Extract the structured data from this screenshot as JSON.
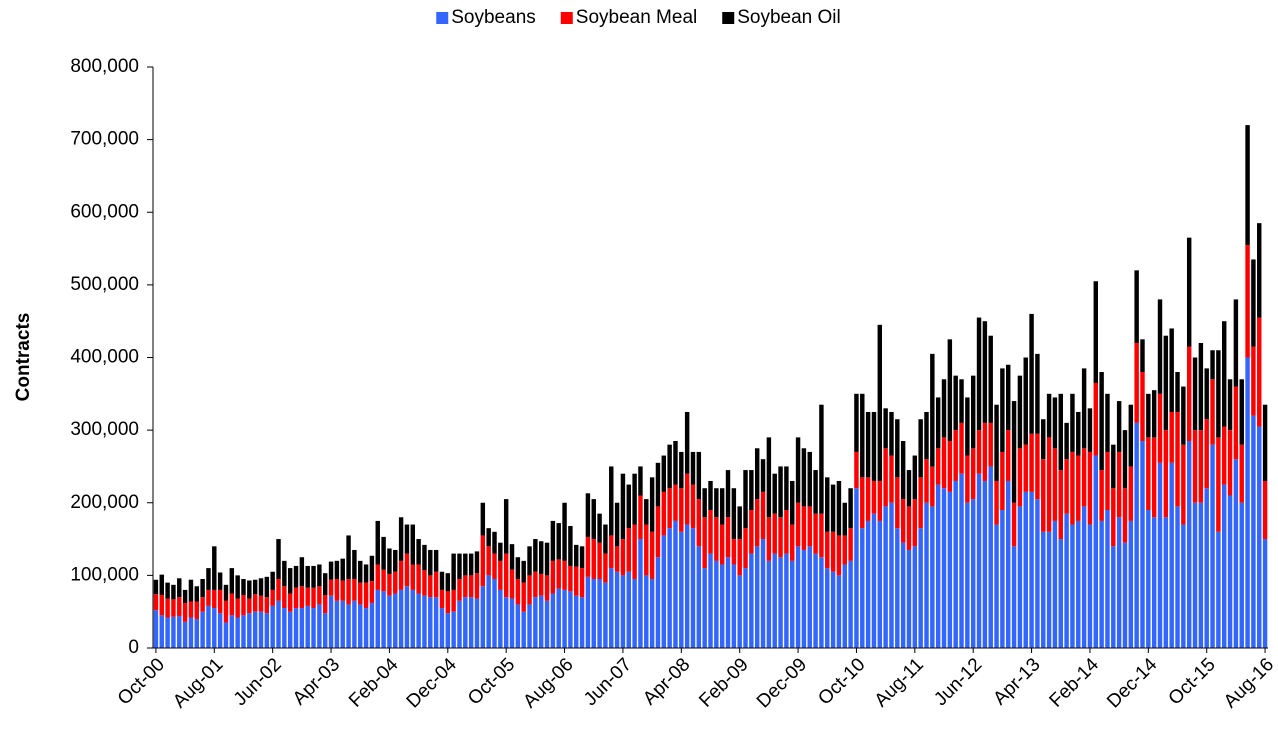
{
  "chart_data": {
    "type": "stacked_bar",
    "y_label": "Contracts",
    "categories": [
      "Oct-00",
      null,
      null,
      null,
      null,
      null,
      null,
      null,
      null,
      null,
      "Aug-01",
      null,
      null,
      null,
      null,
      null,
      null,
      null,
      null,
      null,
      "Jun-02",
      null,
      null,
      null,
      null,
      null,
      null,
      null,
      null,
      null,
      "Apr-03",
      null,
      null,
      null,
      null,
      null,
      null,
      null,
      null,
      null,
      "Feb-04",
      null,
      null,
      null,
      null,
      null,
      null,
      null,
      null,
      null,
      "Dec-04",
      null,
      null,
      null,
      null,
      null,
      null,
      null,
      null,
      null,
      "Oct-05",
      null,
      null,
      null,
      null,
      null,
      null,
      null,
      null,
      null,
      "Aug-06",
      null,
      null,
      null,
      null,
      null,
      null,
      null,
      null,
      null,
      "Jun-07",
      null,
      null,
      null,
      null,
      null,
      null,
      null,
      null,
      null,
      "Apr-08",
      null,
      null,
      null,
      null,
      null,
      null,
      null,
      null,
      null,
      "Feb-09",
      null,
      null,
      null,
      null,
      null,
      null,
      null,
      null,
      null,
      "Dec-09",
      null,
      null,
      null,
      null,
      null,
      null,
      null,
      null,
      null,
      "Oct-10",
      null,
      null,
      null,
      null,
      null,
      null,
      null,
      null,
      null,
      "Aug-11",
      null,
      null,
      null,
      null,
      null,
      null,
      null,
      null,
      null,
      "Jun-12",
      null,
      null,
      null,
      null,
      null,
      null,
      null,
      null,
      null,
      "Apr-13",
      null,
      null,
      null,
      null,
      null,
      null,
      null,
      null,
      null,
      "Feb-14",
      null,
      null,
      null,
      null,
      null,
      null,
      null,
      null,
      null,
      "Dec-14",
      null,
      null,
      null,
      null,
      null,
      null,
      null,
      null,
      null,
      "Oct-15",
      null,
      null,
      null,
      null,
      null,
      null,
      null,
      null,
      null,
      "Aug-16"
    ],
    "series": [
      {
        "name": "Soybeans",
        "color": "#3366ff",
        "values": [
          52000,
          45000,
          42000,
          43000,
          44000,
          36000,
          42000,
          40000,
          50000,
          58000,
          55000,
          48000,
          35000,
          45000,
          42000,
          45000,
          48000,
          50000,
          50000,
          48000,
          58000,
          65000,
          55000,
          50000,
          55000,
          55000,
          58000,
          55000,
          60000,
          48000,
          72000,
          65000,
          65000,
          60000,
          65000,
          60000,
          55000,
          62000,
          80000,
          78000,
          72000,
          75000,
          80000,
          85000,
          80000,
          75000,
          72000,
          70000,
          70000,
          55000,
          48000,
          50000,
          65000,
          70000,
          70000,
          68000,
          85000,
          100000,
          95000,
          80000,
          70000,
          68000,
          60000,
          50000,
          60000,
          70000,
          72000,
          65000,
          75000,
          82000,
          80000,
          78000,
          72000,
          70000,
          98000,
          95000,
          95000,
          90000,
          110000,
          105000,
          100000,
          105000,
          95000,
          150000,
          100000,
          95000,
          125000,
          155000,
          165000,
          175000,
          160000,
          170000,
          165000,
          140000,
          110000,
          130000,
          120000,
          115000,
          125000,
          115000,
          100000,
          110000,
          130000,
          140000,
          150000,
          120000,
          130000,
          125000,
          130000,
          120000,
          140000,
          135000,
          140000,
          130000,
          125000,
          110000,
          105000,
          100000,
          115000,
          120000,
          220000,
          165000,
          175000,
          185000,
          175000,
          195000,
          200000,
          165000,
          145000,
          135000,
          140000,
          165000,
          200000,
          195000,
          225000,
          220000,
          215000,
          230000,
          240000,
          200000,
          205000,
          240000,
          230000,
          250000,
          170000,
          190000,
          230000,
          140000,
          195000,
          215000,
          215000,
          205000,
          160000,
          160000,
          175000,
          150000,
          185000,
          170000,
          175000,
          195000,
          170000,
          265000,
          175000,
          190000,
          140000,
          180000,
          145000,
          175000,
          310000,
          285000,
          190000,
          180000,
          255000,
          180000,
          255000,
          195000,
          170000,
          285000,
          200000,
          200000,
          220000,
          280000,
          160000,
          225000,
          210000,
          260000,
          200000,
          400000,
          320000,
          305000,
          150000
        ]
      },
      {
        "name": "Soybean Meal",
        "color": "#ff0000",
        "values": [
          22000,
          28000,
          26000,
          24000,
          26000,
          26000,
          22000,
          24000,
          20000,
          22000,
          25000,
          32000,
          30000,
          30000,
          26000,
          28000,
          20000,
          24000,
          22000,
          22000,
          22000,
          30000,
          30000,
          25000,
          28000,
          30000,
          25000,
          28000,
          25000,
          25000,
          22000,
          30000,
          28000,
          35000,
          30000,
          30000,
          35000,
          30000,
          35000,
          30000,
          30000,
          30000,
          40000,
          45000,
          35000,
          40000,
          35000,
          30000,
          35000,
          25000,
          30000,
          30000,
          30000,
          30000,
          30000,
          35000,
          70000,
          40000,
          35000,
          40000,
          60000,
          40000,
          35000,
          40000,
          40000,
          35000,
          30000,
          35000,
          45000,
          40000,
          40000,
          35000,
          40000,
          40000,
          55000,
          55000,
          50000,
          40000,
          45000,
          35000,
          50000,
          60000,
          75000,
          60000,
          70000,
          65000,
          70000,
          60000,
          55000,
          50000,
          60000,
          70000,
          60000,
          65000,
          70000,
          60000,
          60000,
          55000,
          55000,
          35000,
          50000,
          55000,
          60000,
          65000,
          65000,
          60000,
          55000,
          55000,
          60000,
          50000,
          60000,
          60000,
          55000,
          55000,
          60000,
          50000,
          55000,
          55000,
          40000,
          45000,
          50000,
          70000,
          60000,
          45000,
          55000,
          80000,
          65000,
          70000,
          60000,
          60000,
          65000,
          70000,
          60000,
          55000,
          50000,
          70000,
          70000,
          70000,
          70000,
          65000,
          70000,
          60000,
          80000,
          60000,
          60000,
          80000,
          70000,
          60000,
          80000,
          65000,
          80000,
          90000,
          100000,
          130000,
          100000,
          95000,
          75000,
          100000,
          90000,
          80000,
          100000,
          100000,
          70000,
          80000,
          80000,
          90000,
          75000,
          75000,
          110000,
          95000,
          100000,
          110000,
          95000,
          120000,
          70000,
          130000,
          110000,
          130000,
          100000,
          100000,
          95000,
          90000,
          130000,
          80000,
          90000,
          100000,
          80000,
          155000,
          95000,
          150000,
          80000
        ]
      },
      {
        "name": "Soybean Oil",
        "color": "#000000",
        "values": [
          20000,
          28000,
          22000,
          20000,
          26000,
          18000,
          30000,
          21000,
          25000,
          30000,
          60000,
          24000,
          22000,
          35000,
          32000,
          22000,
          25000,
          20000,
          24000,
          28000,
          25000,
          55000,
          35000,
          35000,
          30000,
          40000,
          30000,
          30000,
          30000,
          30000,
          25000,
          25000,
          30000,
          60000,
          40000,
          30000,
          25000,
          35000,
          60000,
          45000,
          35000,
          30000,
          60000,
          40000,
          55000,
          35000,
          35000,
          35000,
          30000,
          25000,
          25000,
          50000,
          35000,
          30000,
          30000,
          30000,
          45000,
          25000,
          30000,
          25000,
          75000,
          35000,
          30000,
          30000,
          40000,
          45000,
          45000,
          45000,
          55000,
          50000,
          80000,
          55000,
          30000,
          30000,
          60000,
          55000,
          40000,
          40000,
          95000,
          60000,
          90000,
          60000,
          70000,
          40000,
          35000,
          75000,
          60000,
          50000,
          60000,
          60000,
          50000,
          85000,
          45000,
          65000,
          40000,
          40000,
          40000,
          50000,
          65000,
          70000,
          45000,
          80000,
          55000,
          70000,
          45000,
          110000,
          55000,
          70000,
          60000,
          60000,
          90000,
          80000,
          75000,
          60000,
          150000,
          75000,
          65000,
          75000,
          45000,
          55000,
          80000,
          115000,
          90000,
          95000,
          215000,
          55000,
          60000,
          80000,
          80000,
          50000,
          60000,
          80000,
          65000,
          155000,
          70000,
          80000,
          140000,
          75000,
          60000,
          80000,
          100000,
          155000,
          140000,
          120000,
          105000,
          115000,
          90000,
          140000,
          100000,
          120000,
          165000,
          110000,
          55000,
          60000,
          70000,
          105000,
          50000,
          80000,
          60000,
          110000,
          60000,
          140000,
          135000,
          80000,
          60000,
          70000,
          80000,
          85000,
          100000,
          45000,
          60000,
          65000,
          130000,
          130000,
          115000,
          55000,
          80000,
          150000,
          100000,
          120000,
          70000,
          40000,
          120000,
          145000,
          70000,
          120000,
          90000,
          165000,
          120000,
          130000,
          105000
        ]
      }
    ],
    "legend": "top",
    "ylim": [
      0,
      800000
    ],
    "yticks": [
      0,
      {
        "value": 100000,
        "label": "100,000"
      },
      {
        "value": 200000,
        "label": "200,000"
      },
      {
        "value": 300000,
        "label": "300,000"
      },
      {
        "value": 400000,
        "label": "400,000"
      },
      {
        "value": 500000,
        "label": "500,000"
      },
      {
        "value": 600000,
        "label": "600,000"
      },
      {
        "value": 700000,
        "label": "700,000"
      },
      {
        "value": 800000,
        "label": "800,000"
      }
    ]
  }
}
